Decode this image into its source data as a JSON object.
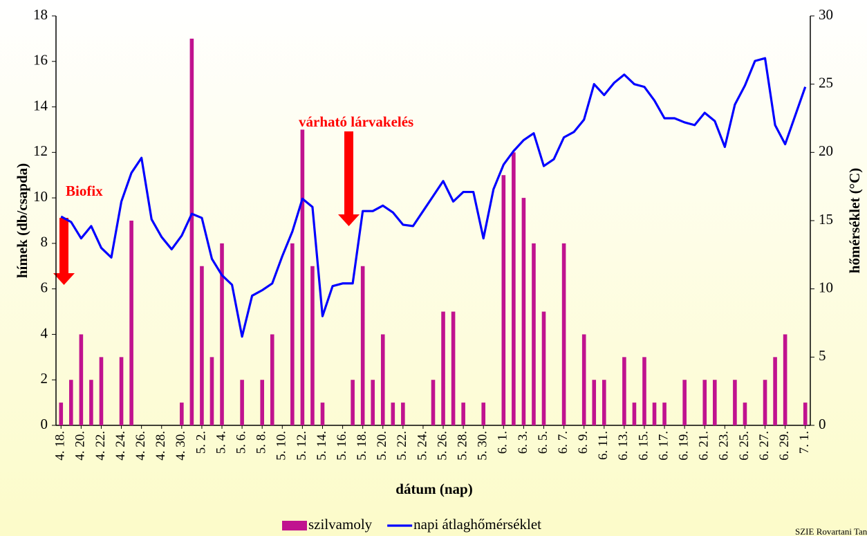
{
  "chart_data": {
    "type": "bar",
    "categories": [
      "4. 18.",
      null,
      "4. 20.",
      null,
      "4. 22.",
      null,
      "4. 24.",
      null,
      "4. 26.",
      null,
      "4. 28.",
      null,
      "4. 30.",
      null,
      "5. 2.",
      null,
      "5. 4.",
      null,
      "5. 6.",
      null,
      "5. 8.",
      null,
      "5. 10.",
      null,
      "5. 12.",
      null,
      "5. 14.",
      null,
      "5. 16.",
      null,
      "5. 18.",
      null,
      "5. 20.",
      null,
      "5. 22.",
      null,
      "5. 24.",
      null,
      "5. 26.",
      null,
      "5. 28.",
      null,
      "5. 30.",
      null,
      "6. 1.",
      null,
      "6. 3.",
      null,
      "6. 5.",
      null,
      "6. 7.",
      null,
      "6. 9.",
      null,
      "6. 11.",
      null,
      "6. 13.",
      null,
      "6. 15.",
      null,
      "6. 17.",
      null,
      "6. 19.",
      null,
      "6. 21.",
      null,
      "6. 23.",
      null,
      "6. 25.",
      null,
      "6. 27.",
      null,
      "6. 29.",
      null,
      "7. 1."
    ],
    "series": [
      {
        "name": "szilvamoly",
        "type": "bar",
        "color": "#c0138f",
        "values": [
          1,
          2,
          4,
          2,
          3,
          0,
          3,
          9,
          0,
          0,
          0,
          0,
          1,
          17,
          7,
          3,
          8,
          0,
          2,
          0,
          2,
          4,
          0,
          8,
          13,
          7,
          1,
          0,
          0,
          2,
          7,
          2,
          4,
          1,
          1,
          0,
          0,
          2,
          5,
          5,
          1,
          0,
          1,
          0,
          11,
          12,
          10,
          8,
          5,
          0,
          8,
          0,
          4,
          2,
          2,
          0,
          3,
          1,
          3,
          1,
          1,
          0,
          2,
          0,
          2,
          2,
          0,
          2,
          1,
          0,
          2,
          3,
          4,
          0,
          1
        ]
      },
      {
        "name": "napi átlaghőmérséklet",
        "type": "line",
        "axis": "y2",
        "color": "#0000ff",
        "values": [
          15.3,
          14.9,
          13.7,
          14.6,
          13.0,
          12.3,
          16.4,
          18.5,
          19.6,
          15.1,
          13.8,
          12.9,
          13.9,
          15.5,
          15.2,
          12.2,
          11.0,
          10.3,
          6.5,
          9.5,
          9.9,
          10.4,
          12.4,
          14.2,
          16.6,
          16.0,
          8.0,
          10.2,
          10.4,
          10.4,
          15.7,
          15.7,
          16.1,
          15.6,
          14.7,
          14.6,
          15.7,
          16.8,
          17.9,
          16.4,
          17.1,
          17.1,
          13.7,
          17.3,
          19.1,
          20.1,
          20.9,
          21.4,
          19.0,
          19.5,
          21.1,
          21.5,
          22.4,
          25.0,
          24.2,
          25.1,
          25.7,
          25.0,
          24.8,
          23.8,
          22.5,
          22.5,
          22.2,
          22.0,
          22.9,
          22.3,
          20.4,
          23.5,
          24.9,
          26.7,
          26.9,
          22.0,
          20.6,
          22.7,
          24.8
        ]
      }
    ],
    "ylabel": "hímek  (db/csapda)",
    "y2label": "hőmérséklet (°C)",
    "xlabel": "dátum (nap)",
    "ylim": [
      0,
      18
    ],
    "yticks": [
      0,
      2,
      4,
      6,
      8,
      10,
      12,
      14,
      16,
      18
    ],
    "y2lim": [
      0,
      30
    ],
    "y2ticks": [
      0,
      5,
      10,
      15,
      20,
      25,
      30
    ],
    "annotations": [
      "Biofix",
      "várható lárvakelés"
    ],
    "source": "SZIE Rovartani Tanszék",
    "legend": "bottom"
  }
}
